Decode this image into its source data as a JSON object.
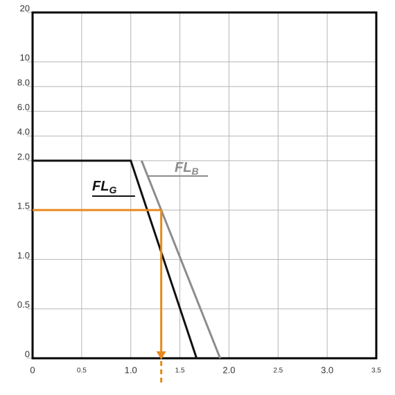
{
  "chart_data": {
    "type": "line",
    "xlim": [
      0,
      3.5
    ],
    "xticks": [
      0,
      0.5,
      {
        "value": 1,
        "label": "1.0"
      },
      1.5,
      {
        "value": 2,
        "label": "2.0"
      },
      2.5,
      {
        "value": 3,
        "label": "3.0"
      },
      3.5
    ],
    "ylim": [
      0,
      20
    ],
    "yticks": [
      0,
      0.5,
      {
        "value": 1,
        "label": "1.0"
      },
      1.5,
      {
        "value": 2,
        "label": "2.0"
      },
      {
        "value": 4,
        "label": "4.0"
      },
      {
        "value": 6,
        "label": "6.0"
      },
      {
        "value": 8,
        "label": "8.0"
      },
      10,
      20
    ],
    "grid": true,
    "series": [
      {
        "label": "FL",
        "subscript": "G",
        "color": "#111111",
        "x": [
          0,
          1.0,
          1.67
        ],
        "y": [
          2,
          2,
          0
        ]
      },
      {
        "label": "FL",
        "subscript": "B",
        "color": "#8c8c8c",
        "x": [
          1.11,
          1.91
        ],
        "y": [
          2,
          0
        ]
      }
    ],
    "guide": {
      "color": "#e8891c",
      "x": [
        0,
        1.31,
        1.31
      ],
      "y": [
        1.5,
        1.5,
        0
      ]
    }
  }
}
